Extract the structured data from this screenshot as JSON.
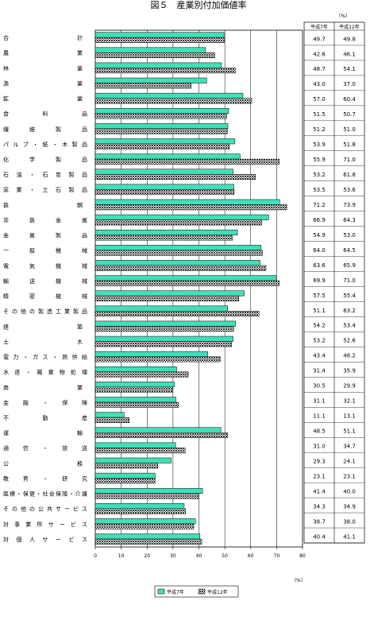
{
  "chart_data": {
    "type": "bar",
    "orientation": "horizontal",
    "title": "図５　産業別付加価値率",
    "xlabel": "（%）",
    "unit_label": "（%）",
    "xlim": [
      0,
      80
    ],
    "xticks": [
      0,
      10,
      20,
      30,
      40,
      50,
      60,
      70,
      80
    ],
    "grid": true,
    "legend_position": "bottom",
    "categories": [
      "合計",
      "農業",
      "林業",
      "漁業",
      "鉱業",
      "食料品",
      "繊維製品",
      "パルプ・紙・木製品",
      "化学製品",
      "石油・石炭製品",
      "窯業・土石製品",
      "鉄鋼",
      "非鉄金属",
      "金属製品",
      "一般機械",
      "電気機械",
      "輸送機械",
      "精密機械",
      "その他の製造工業製品",
      "建築",
      "土木",
      "電力・ガス・熱供給",
      "水道・廃棄物処理",
      "商業",
      "金融・保険",
      "不動産",
      "運輸",
      "通信・放送",
      "公務",
      "教育・研究",
      "医療・保健・社会保障・介護",
      "その他の公共サービス",
      "対事業所サービス",
      "対個人サービス"
    ],
    "series": [
      {
        "name": "平成7年",
        "values": [
          49.7,
          42.6,
          48.7,
          43.0,
          57.0,
          51.5,
          51.2,
          53.9,
          55.9,
          53.2,
          53.5,
          71.2,
          66.9,
          54.9,
          64.0,
          63.6,
          69.9,
          57.5,
          51.1,
          54.2,
          53.2,
          43.4,
          31.4,
          30.5,
          31.1,
          11.1,
          48.5,
          31.0,
          29.3,
          23.1,
          41.4,
          34.3,
          38.7,
          40.4
        ]
      },
      {
        "name": "平成12年",
        "values": [
          49.8,
          46.1,
          54.1,
          37.0,
          60.4,
          50.7,
          51.0,
          51.8,
          71.0,
          61.8,
          53.6,
          73.9,
          64.3,
          53.0,
          64.5,
          65.9,
          71.0,
          55.4,
          63.2,
          53.4,
          52.6,
          48.2,
          35.9,
          29.9,
          32.1,
          13.1,
          51.1,
          34.7,
          24.1,
          23.1,
          40.0,
          34.9,
          38.0,
          41.1
        ]
      }
    ],
    "table": {
      "unit": "（%）",
      "header": [
        "平成7年",
        "平成12年"
      ],
      "rows": [
        [
          "49.7",
          "49.8"
        ],
        [
          "42.6",
          "46.1"
        ],
        [
          "48.7",
          "54.1"
        ],
        [
          "43.0",
          "37.0"
        ],
        [
          "57.0",
          "60.4"
        ],
        [
          "51.5",
          "50.7"
        ],
        [
          "51.2",
          "51.0"
        ],
        [
          "53.9",
          "51.8"
        ],
        [
          "55.9",
          "71.0"
        ],
        [
          "53.2",
          "61.8"
        ],
        [
          "53.5",
          "53.6"
        ],
        [
          "71.2",
          "73.9"
        ],
        [
          "66.9",
          "64.3"
        ],
        [
          "54.9",
          "53.0"
        ],
        [
          "64.0",
          "64.5"
        ],
        [
          "63.6",
          "65.9"
        ],
        [
          "69.9",
          "71.0"
        ],
        [
          "57.5",
          "55.4"
        ],
        [
          "51.1",
          "63.2"
        ],
        [
          "54.2",
          "53.4"
        ],
        [
          "53.2",
          "52.6"
        ],
        [
          "43.4",
          "48.2"
        ],
        [
          "31.4",
          "35.9"
        ],
        [
          "30.5",
          "29.9"
        ],
        [
          "31.1",
          "32.1"
        ],
        [
          "11.1",
          "13.1"
        ],
        [
          "48.5",
          "51.1"
        ],
        [
          "31.0",
          "34.7"
        ],
        [
          "29.3",
          "24.1"
        ],
        [
          "23.1",
          "23.1"
        ],
        [
          "41.4",
          "40.0"
        ],
        [
          "34.3",
          "34.9"
        ],
        [
          "38.7",
          "38.0"
        ],
        [
          "40.4",
          "41.1"
        ]
      ]
    },
    "colors": {
      "series1": "#3fe0b8",
      "series2_pattern": "#3a3a3a"
    }
  }
}
